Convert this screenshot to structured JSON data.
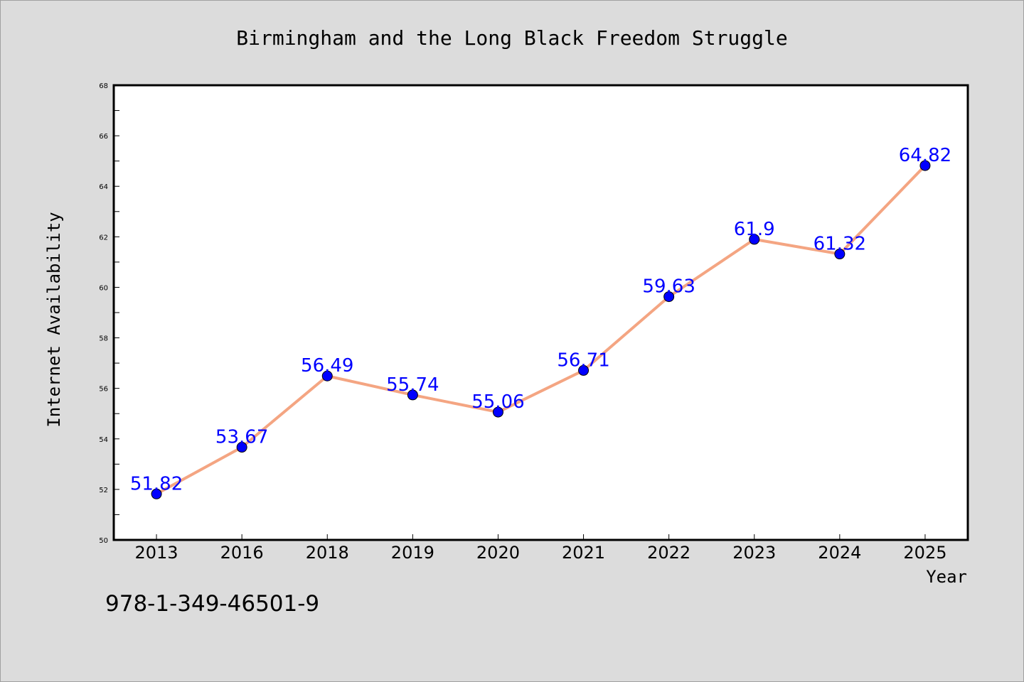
{
  "chart_data": {
    "type": "line",
    "title": "Birmingham and the Long Black Freedom Struggle",
    "xlabel": "Year",
    "ylabel": "Internet Availability",
    "categories": [
      "2013",
      "2016",
      "2018",
      "2019",
      "2020",
      "2021",
      "2022",
      "2023",
      "2024",
      "2025"
    ],
    "series": [
      {
        "values": [
          51.82,
          53.67,
          56.49,
          55.74,
          55.06,
          56.71,
          59.63,
          61.9,
          61.32,
          64.82
        ],
        "data_labels": [
          "51.82",
          "53.67",
          "56.49",
          "55.74",
          "55.06",
          "56.71",
          "59.63",
          "61.9",
          "61.32",
          "64.82"
        ]
      }
    ],
    "ylim": [
      50,
      68
    ],
    "yticks": [
      "50",
      "52",
      "54",
      "56",
      "58",
      "60",
      "62",
      "64",
      "66",
      "68"
    ],
    "grid": false,
    "colors": {
      "line": "#f4a582",
      "marker": "#0000ff",
      "label": "#0000ff",
      "plot_background": "#ffffff",
      "page_background": "#dcdcdc"
    }
  },
  "footer_text": "978-1-349-46501-9"
}
